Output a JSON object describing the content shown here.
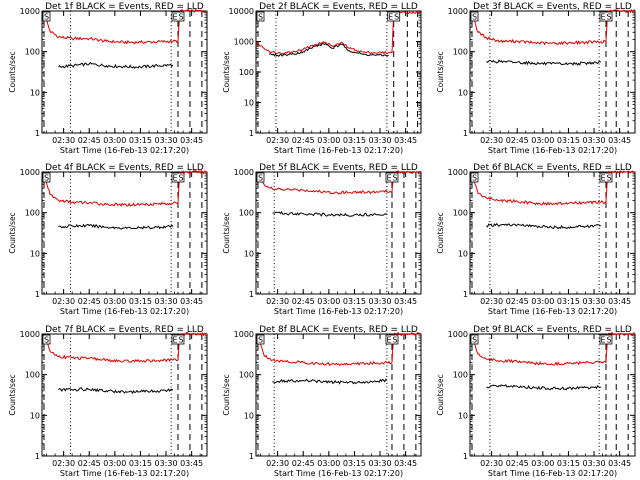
{
  "panel_titles": [
    "Det 1f BLACK = Events, RED = LLD",
    "Det 2f BLACK = Events, RED = LLD",
    "Det 3f BLACK = Events, RED = LLD",
    "Det 4f BLACK = Events, RED = LLD",
    "Det 5f BLACK = Events, RED = LLD",
    "Det 6f BLACK = Events, RED = LLD",
    "Det 7f BLACK = Events, RED = LLD",
    "Det 8f BLACK = Events, RED = LLD",
    "Det 9f BLACK = Events, RED = LLD"
  ],
  "ylabel": "Counts/sec",
  "xlabel": "Start Time (16-Feb-13 02:17:20)",
  "x_tick_labels": [
    "02:30",
    "02:45",
    "03:00",
    "03:15",
    "03:30",
    "03:45"
  ],
  "y_tick_labels": [
    "1",
    "10",
    "100",
    "1000"
  ],
  "marker_labels": {
    "start": "S",
    "end_left": "E",
    "end_right": "S"
  },
  "colors": {
    "events": "#000000",
    "lld": "#dd0000",
    "axes": "#000000"
  },
  "chart_data": [
    {
      "type": "line",
      "title": "Det 1f BLACK = Events, RED = LLD",
      "xlabel": "Start Time (16-Feb-13 02:17:20)",
      "ylabel": "Counts/sec",
      "y_scale": "log",
      "ylim": [
        1,
        1000
      ],
      "xlim": [
        "02:17:20",
        "03:54:00"
      ],
      "series": [
        {
          "name": "LLD",
          "color": "#dd0000",
          "x": [
            "02:19",
            "02:22",
            "02:27",
            "02:35",
            "02:45",
            "02:55",
            "03:05",
            "03:15",
            "03:25",
            "03:34",
            "03:37",
            "03:38",
            "03:54"
          ],
          "y": [
            800,
            320,
            230,
            210,
            210,
            180,
            170,
            170,
            175,
            180,
            180,
            1000,
            1000
          ]
        },
        {
          "name": "Events",
          "color": "#000000",
          "x": [
            "02:27",
            "02:35",
            "02:45",
            "02:55",
            "03:05",
            "03:15",
            "03:25",
            "03:34"
          ],
          "y": [
            42,
            45,
            50,
            45,
            43,
            42,
            45,
            47
          ]
        }
      ],
      "dotted_lines": [
        "02:34",
        "03:33"
      ],
      "dashed_lines": [
        "02:17:20",
        "03:37",
        "03:44",
        "03:51"
      ]
    },
    {
      "type": "line",
      "title": "Det 2f BLACK = Events, RED = LLD",
      "xlabel": "Start Time (16-Feb-13 02:17:20)",
      "ylabel": "Counts/sec",
      "y_scale": "log",
      "ylim": [
        1,
        10000
      ],
      "xlim": [
        "02:17:20",
        "03:54:00"
      ],
      "series": [
        {
          "name": "LLD",
          "color": "#dd0000",
          "x": [
            "02:17:20",
            "02:25",
            "02:30",
            "02:38",
            "02:45",
            "02:52",
            "02:58",
            "03:02",
            "03:08",
            "03:12",
            "03:16",
            "03:20",
            "03:25",
            "03:35",
            "03:37",
            "03:38",
            "03:54"
          ],
          "y": [
            900,
            480,
            420,
            450,
            560,
            800,
            950,
            700,
            900,
            600,
            520,
            450,
            430,
            430,
            430,
            9000,
            9000
          ]
        },
        {
          "name": "Events",
          "color": "#000000",
          "x": [
            "02:25",
            "02:30",
            "02:38",
            "02:45",
            "02:52",
            "02:58",
            "03:02",
            "03:08",
            "03:12",
            "03:16",
            "03:20",
            "03:25",
            "03:35"
          ],
          "y": [
            380,
            350,
            380,
            460,
            700,
            850,
            600,
            800,
            500,
            430,
            380,
            360,
            350
          ]
        }
      ],
      "dotted_lines": [
        "02:29",
        "03:34"
      ],
      "dashed_lines": [
        "02:17:20",
        "03:38",
        "03:46",
        "03:52"
      ]
    },
    {
      "type": "line",
      "title": "Det 3f BLACK = Events, RED = LLD",
      "xlabel": "Start Time (16-Feb-13 02:17:20)",
      "ylabel": "Counts/sec",
      "y_scale": "log",
      "ylim": [
        1,
        1000
      ],
      "xlim": [
        "02:17:20",
        "03:54:00"
      ],
      "series": [
        {
          "name": "LLD",
          "color": "#dd0000",
          "x": [
            "02:19",
            "02:22",
            "02:27",
            "02:35",
            "02:45",
            "02:55",
            "03:05",
            "03:15",
            "03:25",
            "03:34",
            "03:37",
            "03:38",
            "03:54"
          ],
          "y": [
            800,
            300,
            220,
            180,
            180,
            165,
            160,
            165,
            170,
            175,
            175,
            1000,
            1000
          ]
        },
        {
          "name": "Events",
          "color": "#000000",
          "x": [
            "02:27",
            "02:35",
            "02:45",
            "02:55",
            "03:05",
            "03:15",
            "03:25",
            "03:34"
          ],
          "y": [
            58,
            57,
            55,
            52,
            50,
            50,
            52,
            55
          ]
        }
      ],
      "dotted_lines": [
        "02:29",
        "03:33"
      ],
      "dashed_lines": [
        "02:17:20",
        "03:37",
        "03:43",
        "03:50"
      ]
    },
    {
      "type": "line",
      "title": "Det 4f BLACK = Events, RED = LLD",
      "xlabel": "Start Time (16-Feb-13 02:17:20)",
      "ylabel": "Counts/sec",
      "y_scale": "log",
      "ylim": [
        1,
        1000
      ],
      "xlim": [
        "02:17:20",
        "03:54:00"
      ],
      "series": [
        {
          "name": "LLD",
          "color": "#dd0000",
          "x": [
            "02:19",
            "02:22",
            "02:27",
            "02:35",
            "02:45",
            "02:55",
            "03:05",
            "03:15",
            "03:25",
            "03:34",
            "03:37",
            "03:38",
            "03:54"
          ],
          "y": [
            800,
            280,
            200,
            180,
            175,
            160,
            155,
            160,
            165,
            170,
            170,
            1000,
            1000
          ]
        },
        {
          "name": "Events",
          "color": "#000000",
          "x": [
            "02:27",
            "02:35",
            "02:45",
            "02:55",
            "03:05",
            "03:15",
            "03:25",
            "03:34"
          ],
          "y": [
            45,
            47,
            48,
            44,
            42,
            42,
            44,
            46
          ]
        }
      ],
      "dotted_lines": [
        "02:34",
        "03:33"
      ],
      "dashed_lines": [
        "02:17:20",
        "03:37",
        "03:44",
        "03:51"
      ]
    },
    {
      "type": "line",
      "title": "Det 5f BLACK = Events, RED = LLD",
      "xlabel": "Start Time (16-Feb-13 02:17:20)",
      "ylabel": "Counts/sec",
      "y_scale": "log",
      "ylim": [
        1,
        1000
      ],
      "xlim": [
        "02:17:20",
        "03:54:00"
      ],
      "series": [
        {
          "name": "LLD",
          "color": "#dd0000",
          "x": [
            "02:19",
            "02:22",
            "02:27",
            "02:35",
            "02:45",
            "02:55",
            "03:05",
            "03:15",
            "03:25",
            "03:34",
            "03:37",
            "03:38",
            "03:54"
          ],
          "y": [
            900,
            500,
            380,
            370,
            360,
            330,
            310,
            320,
            320,
            330,
            330,
            1000,
            1000
          ]
        },
        {
          "name": "Events",
          "color": "#000000",
          "x": [
            "02:27",
            "02:35",
            "02:45",
            "02:55",
            "03:05",
            "03:15",
            "03:25",
            "03:34"
          ],
          "y": [
            100,
            95,
            95,
            90,
            88,
            88,
            90,
            92
          ]
        }
      ],
      "dotted_lines": [
        "02:28",
        "03:34"
      ],
      "dashed_lines": [
        "02:17:20",
        "03:37",
        "03:44",
        "03:51"
      ]
    },
    {
      "type": "line",
      "title": "Det 6f BLACK = Events, RED = LLD",
      "xlabel": "Start Time (16-Feb-13 02:17:20)",
      "ylabel": "Counts/sec",
      "y_scale": "log",
      "ylim": [
        1,
        1000
      ],
      "xlim": [
        "02:17:20",
        "03:54:00"
      ],
      "series": [
        {
          "name": "LLD",
          "color": "#dd0000",
          "x": [
            "02:19",
            "02:22",
            "02:27",
            "02:35",
            "02:45",
            "02:55",
            "03:05",
            "03:15",
            "03:25",
            "03:34",
            "03:37",
            "03:38",
            "03:54"
          ],
          "y": [
            800,
            300,
            230,
            200,
            190,
            170,
            165,
            170,
            175,
            180,
            180,
            1000,
            1000
          ]
        },
        {
          "name": "Events",
          "color": "#000000",
          "x": [
            "02:27",
            "02:35",
            "02:45",
            "02:55",
            "03:05",
            "03:15",
            "03:25",
            "03:34"
          ],
          "y": [
            48,
            50,
            50,
            46,
            44,
            44,
            46,
            48
          ]
        }
      ],
      "dotted_lines": [
        "02:29",
        "03:33"
      ],
      "dashed_lines": [
        "02:17:20",
        "03:37",
        "03:43",
        "03:50"
      ]
    },
    {
      "type": "line",
      "title": "Det 7f BLACK = Events, RED = LLD",
      "xlabel": "Start Time (16-Feb-13 02:17:20)",
      "ylabel": "Counts/sec",
      "y_scale": "log",
      "ylim": [
        1,
        1000
      ],
      "xlim": [
        "02:17:20",
        "03:54:00"
      ],
      "series": [
        {
          "name": "LLD",
          "color": "#dd0000",
          "x": [
            "02:19",
            "02:22",
            "02:27",
            "02:35",
            "02:45",
            "02:55",
            "03:05",
            "03:15",
            "03:25",
            "03:34",
            "03:37",
            "03:38",
            "03:54"
          ],
          "y": [
            850,
            380,
            280,
            260,
            250,
            230,
            210,
            220,
            220,
            230,
            230,
            1000,
            1000
          ]
        },
        {
          "name": "Events",
          "color": "#000000",
          "x": [
            "02:27",
            "02:35",
            "02:45",
            "02:55",
            "03:05",
            "03:15",
            "03:25",
            "03:34"
          ],
          "y": [
            42,
            43,
            44,
            40,
            38,
            38,
            40,
            42
          ]
        }
      ],
      "dotted_lines": [
        "02:34",
        "03:33"
      ],
      "dashed_lines": [
        "02:17:20",
        "03:37",
        "03:44",
        "03:51"
      ]
    },
    {
      "type": "line",
      "title": "Det 8f BLACK = Events, RED = LLD",
      "xlabel": "Start Time (16-Feb-13 02:17:20)",
      "ylabel": "Counts/sec",
      "y_scale": "log",
      "ylim": [
        1,
        1000
      ],
      "xlim": [
        "02:17:20",
        "03:54:00"
      ],
      "series": [
        {
          "name": "LLD",
          "color": "#dd0000",
          "x": [
            "02:19",
            "02:22",
            "02:27",
            "02:35",
            "02:45",
            "02:55",
            "03:05",
            "03:15",
            "03:25",
            "03:34",
            "03:37",
            "03:38",
            "03:54"
          ],
          "y": [
            800,
            300,
            230,
            210,
            200,
            185,
            180,
            185,
            190,
            200,
            200,
            1000,
            1000
          ]
        },
        {
          "name": "Events",
          "color": "#000000",
          "x": [
            "02:27",
            "02:35",
            "02:45",
            "02:55",
            "03:05",
            "03:15",
            "03:25",
            "03:34"
          ],
          "y": [
            68,
            70,
            72,
            68,
            65,
            65,
            68,
            72
          ]
        }
      ],
      "dotted_lines": [
        "02:28",
        "03:34"
      ],
      "dashed_lines": [
        "02:17:20",
        "03:37",
        "03:44",
        "03:51"
      ]
    },
    {
      "type": "line",
      "title": "Det 9f BLACK = Events, RED = LLD",
      "xlabel": "Start Time (16-Feb-13 02:17:20)",
      "ylabel": "Counts/sec",
      "y_scale": "log",
      "ylim": [
        1,
        1000
      ],
      "xlim": [
        "02:17:20",
        "03:54:00"
      ],
      "series": [
        {
          "name": "LLD",
          "color": "#dd0000",
          "x": [
            "02:19",
            "02:22",
            "02:27",
            "02:35",
            "02:45",
            "02:55",
            "03:05",
            "03:15",
            "03:25",
            "03:34",
            "03:37",
            "03:38",
            "03:54"
          ],
          "y": [
            800,
            320,
            240,
            220,
            210,
            190,
            185,
            190,
            195,
            200,
            200,
            1000,
            1000
          ]
        },
        {
          "name": "Events",
          "color": "#000000",
          "x": [
            "02:27",
            "02:35",
            "02:45",
            "02:55",
            "03:05",
            "03:15",
            "03:25",
            "03:34"
          ],
          "y": [
            50,
            52,
            52,
            48,
            46,
            46,
            48,
            50
          ]
        }
      ],
      "dotted_lines": [
        "02:29",
        "03:33"
      ],
      "dashed_lines": [
        "02:17:20",
        "03:37",
        "03:43",
        "03:50"
      ]
    }
  ]
}
